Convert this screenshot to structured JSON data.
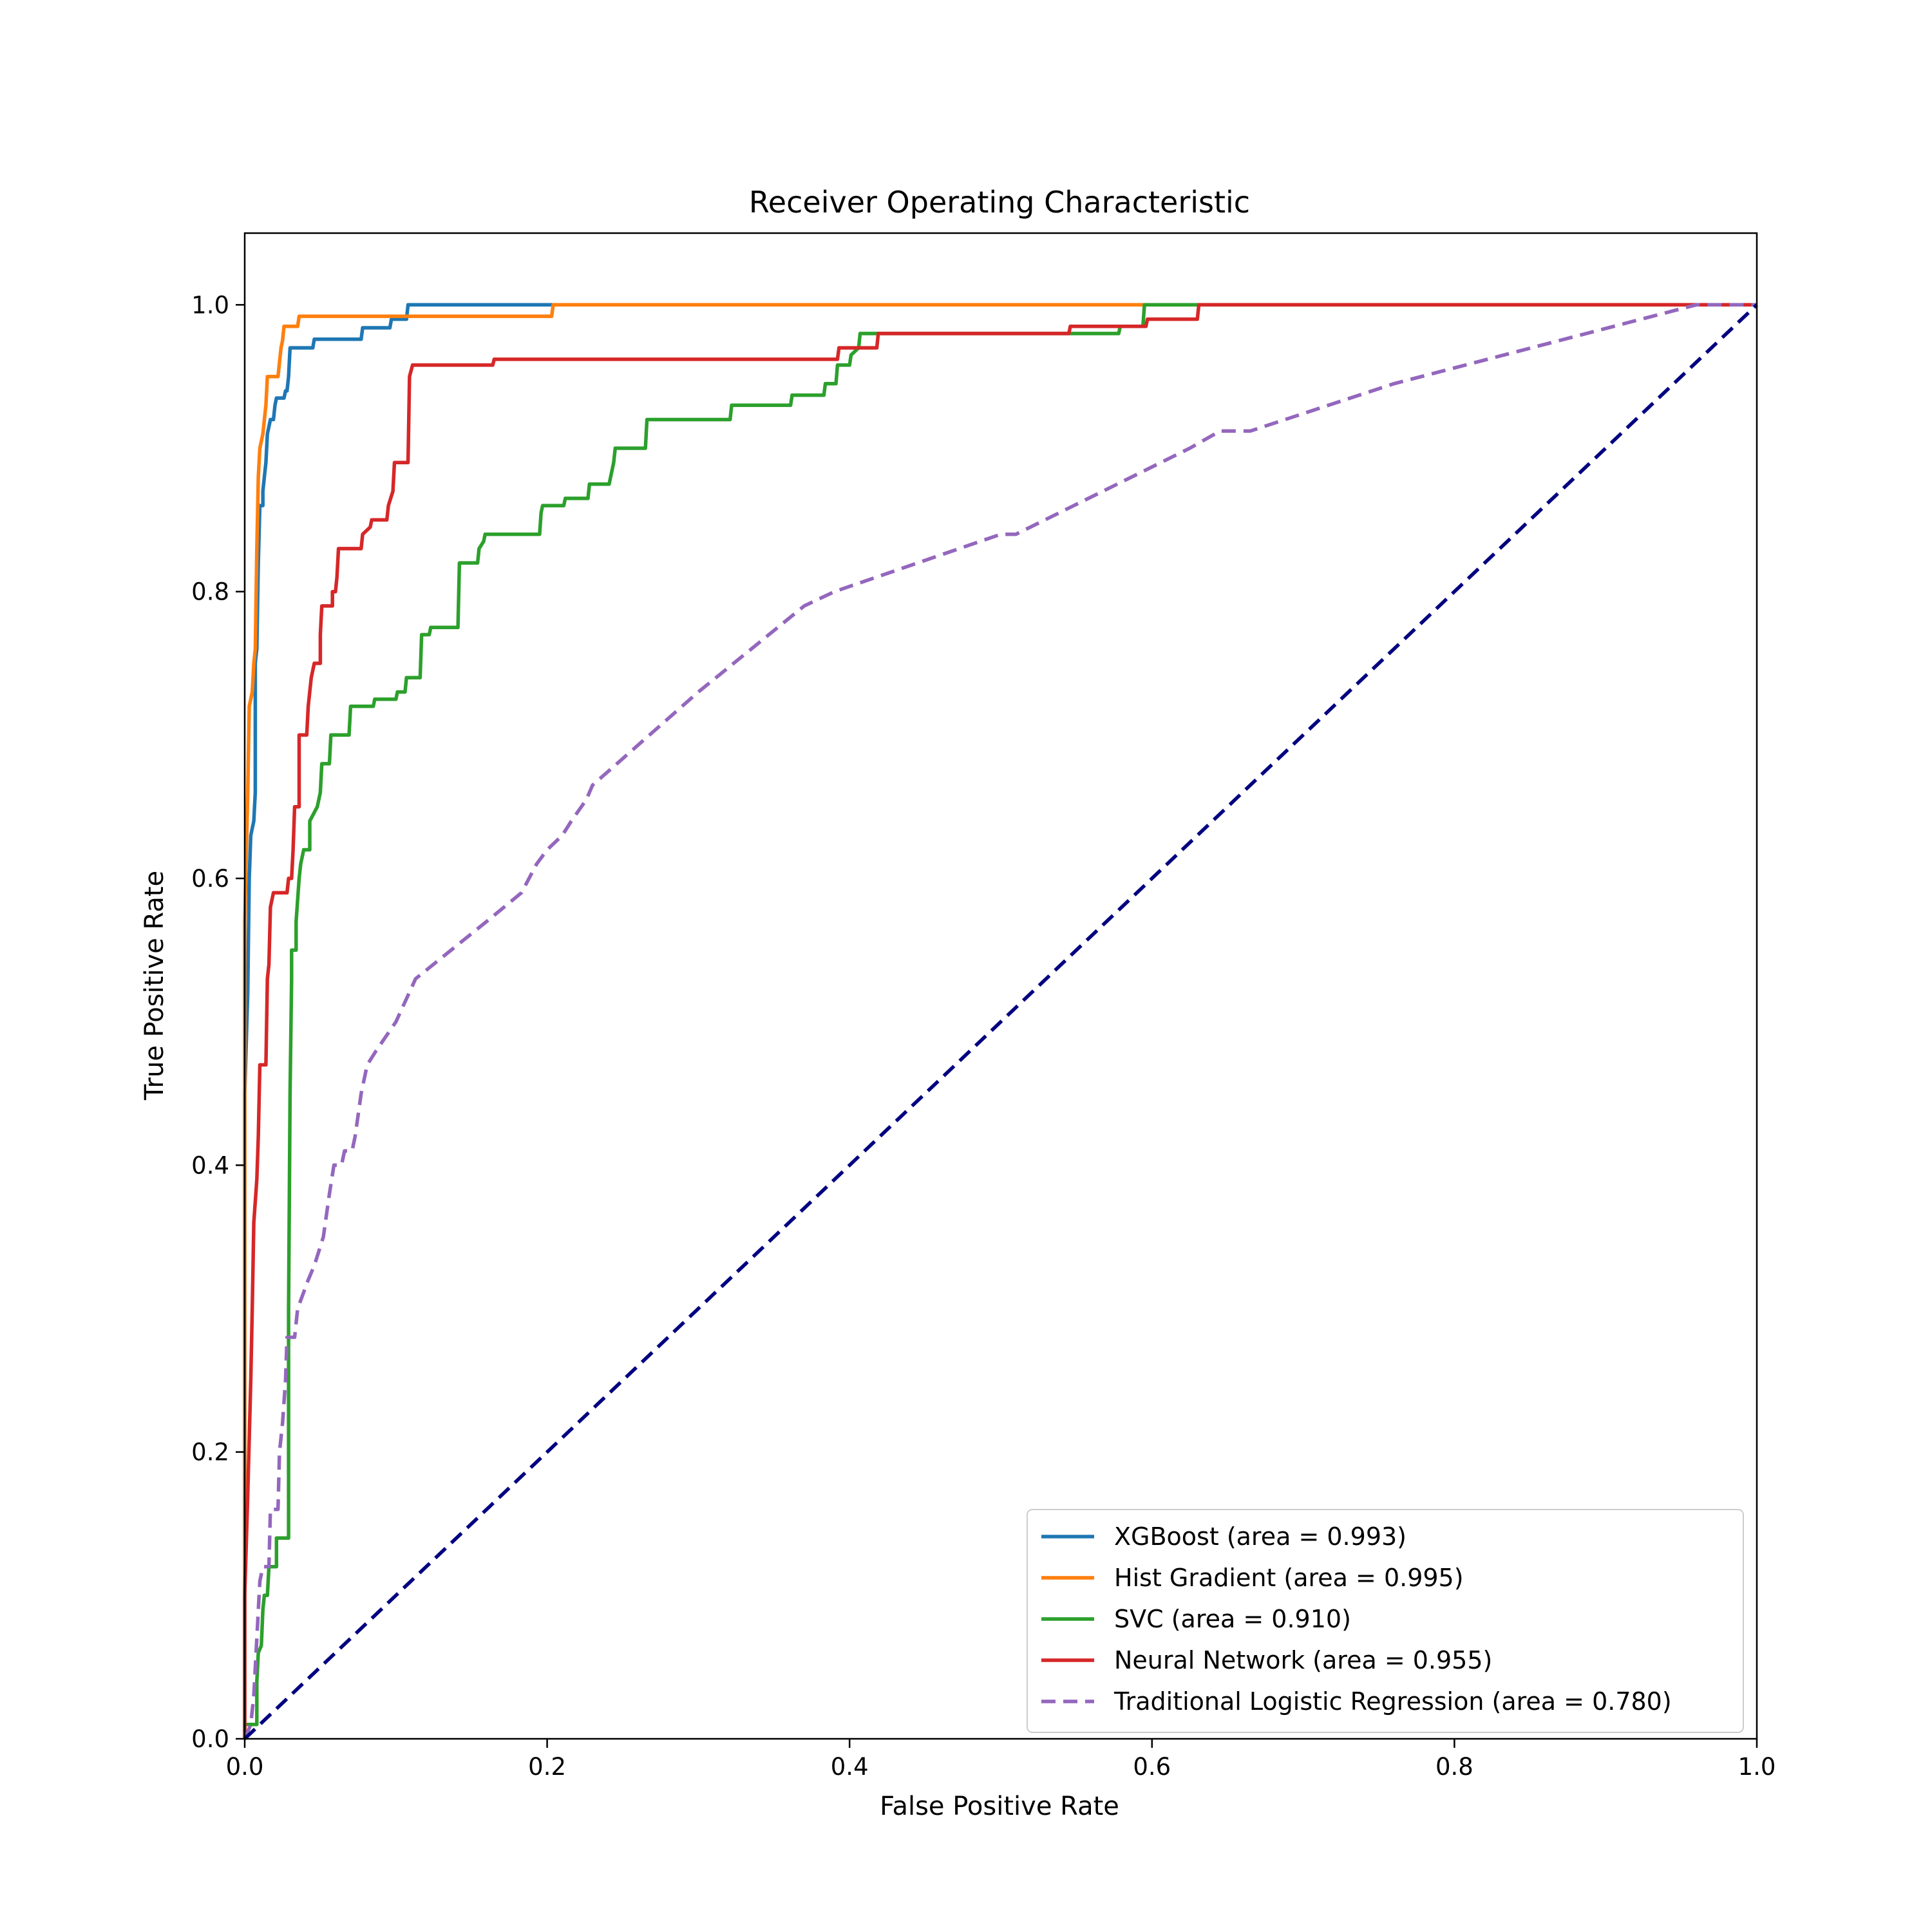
{
  "chart_data": {
    "type": "line",
    "title": "Receiver Operating Characteristic",
    "xlabel": "False Positive Rate",
    "ylabel": "True Positive Rate",
    "xlim": [
      0.0,
      1.0
    ],
    "ylim": [
      0.0,
      1.05
    ],
    "x_ticks": [
      "0.0",
      "0.2",
      "0.4",
      "0.6",
      "0.8",
      "1.0"
    ],
    "y_ticks": [
      "0.0",
      "0.2",
      "0.4",
      "0.6",
      "0.8",
      "1.0"
    ],
    "grid": false,
    "legend_position": "bottom-right",
    "series": [
      {
        "name": "XGBoost (area = 0.993)",
        "color": "#1f77b4",
        "style": "solid",
        "points": [
          [
            0,
            0
          ],
          [
            0,
            0.45
          ],
          [
            0.002,
            0.52
          ],
          [
            0.003,
            0.6
          ],
          [
            0.004,
            0.63
          ],
          [
            0.006,
            0.64
          ],
          [
            0.007,
            0.66
          ],
          [
            0.007,
            0.75
          ],
          [
            0.008,
            0.76
          ],
          [
            0.009,
            0.82
          ],
          [
            0.01,
            0.86
          ],
          [
            0.012,
            0.86
          ],
          [
            0.012,
            0.87
          ],
          [
            0.013,
            0.88
          ],
          [
            0.014,
            0.89
          ],
          [
            0.015,
            0.91
          ],
          [
            0.017,
            0.92
          ],
          [
            0.019,
            0.92
          ],
          [
            0.02,
            0.93
          ],
          [
            0.021,
            0.935
          ],
          [
            0.026,
            0.935
          ],
          [
            0.027,
            0.94
          ],
          [
            0.028,
            0.94
          ],
          [
            0.029,
            0.95
          ],
          [
            0.03,
            0.97
          ],
          [
            0.045,
            0.97
          ],
          [
            0.046,
            0.976
          ],
          [
            0.077,
            0.976
          ],
          [
            0.078,
            0.984
          ],
          [
            0.096,
            0.984
          ],
          [
            0.097,
            0.99
          ],
          [
            0.107,
            0.99
          ],
          [
            0.108,
            1.0
          ],
          [
            1.0,
            1.0
          ]
        ]
      },
      {
        "name": "Hist Gradient (area = 0.995)",
        "color": "#ff7f0e",
        "style": "solid",
        "points": [
          [
            0,
            0
          ],
          [
            0,
            0.57
          ],
          [
            0.002,
            0.66
          ],
          [
            0.003,
            0.72
          ],
          [
            0.005,
            0.73
          ],
          [
            0.006,
            0.75
          ],
          [
            0.007,
            0.76
          ],
          [
            0.008,
            0.83
          ],
          [
            0.009,
            0.88
          ],
          [
            0.01,
            0.9
          ],
          [
            0.012,
            0.91
          ],
          [
            0.013,
            0.92
          ],
          [
            0.014,
            0.93
          ],
          [
            0.015,
            0.95
          ],
          [
            0.022,
            0.95
          ],
          [
            0.023,
            0.96
          ],
          [
            0.024,
            0.97
          ],
          [
            0.025,
            0.975
          ],
          [
            0.026,
            0.985
          ],
          [
            0.035,
            0.985
          ],
          [
            0.036,
            0.992
          ],
          [
            0.203,
            0.992
          ],
          [
            0.204,
            1.0
          ],
          [
            1.0,
            1.0
          ]
        ]
      },
      {
        "name": "SVC (area = 0.910)",
        "color": "#2ca02c",
        "style": "solid",
        "points": [
          [
            0,
            0
          ],
          [
            0,
            0.01
          ],
          [
            0.008,
            0.01
          ],
          [
            0.008,
            0.04
          ],
          [
            0.009,
            0.06
          ],
          [
            0.011,
            0.065
          ],
          [
            0.012,
            0.09
          ],
          [
            0.013,
            0.1
          ],
          [
            0.015,
            0.1
          ],
          [
            0.016,
            0.12
          ],
          [
            0.021,
            0.12
          ],
          [
            0.021,
            0.14
          ],
          [
            0.029,
            0.14
          ],
          [
            0.029,
            0.3
          ],
          [
            0.03,
            0.45
          ],
          [
            0.031,
            0.53
          ],
          [
            0.031,
            0.55
          ],
          [
            0.034,
            0.55
          ],
          [
            0.034,
            0.57
          ],
          [
            0.036,
            0.6
          ],
          [
            0.037,
            0.61
          ],
          [
            0.039,
            0.62
          ],
          [
            0.043,
            0.62
          ],
          [
            0.043,
            0.64
          ],
          [
            0.048,
            0.65
          ],
          [
            0.05,
            0.66
          ],
          [
            0.051,
            0.68
          ],
          [
            0.056,
            0.68
          ],
          [
            0.057,
            0.7
          ],
          [
            0.069,
            0.7
          ],
          [
            0.07,
            0.72
          ],
          [
            0.085,
            0.72
          ],
          [
            0.086,
            0.725
          ],
          [
            0.1,
            0.725
          ],
          [
            0.101,
            0.73
          ],
          [
            0.106,
            0.73
          ],
          [
            0.107,
            0.74
          ],
          [
            0.116,
            0.74
          ],
          [
            0.117,
            0.77
          ],
          [
            0.122,
            0.77
          ],
          [
            0.123,
            0.775
          ],
          [
            0.141,
            0.775
          ],
          [
            0.142,
            0.82
          ],
          [
            0.154,
            0.82
          ],
          [
            0.155,
            0.83
          ],
          [
            0.158,
            0.835
          ],
          [
            0.159,
            0.84
          ],
          [
            0.195,
            0.84
          ],
          [
            0.196,
            0.855
          ],
          [
            0.197,
            0.86
          ],
          [
            0.211,
            0.86
          ],
          [
            0.212,
            0.865
          ],
          [
            0.227,
            0.865
          ],
          [
            0.228,
            0.875
          ],
          [
            0.241,
            0.875
          ],
          [
            0.242,
            0.88
          ],
          [
            0.244,
            0.89
          ],
          [
            0.245,
            0.9
          ],
          [
            0.265,
            0.9
          ],
          [
            0.266,
            0.92
          ],
          [
            0.321,
            0.92
          ],
          [
            0.322,
            0.93
          ],
          [
            0.361,
            0.93
          ],
          [
            0.362,
            0.937
          ],
          [
            0.383,
            0.937
          ],
          [
            0.384,
            0.945
          ],
          [
            0.391,
            0.945
          ],
          [
            0.392,
            0.958
          ],
          [
            0.4,
            0.958
          ],
          [
            0.401,
            0.965
          ],
          [
            0.406,
            0.97
          ],
          [
            0.407,
            0.98
          ],
          [
            0.578,
            0.98
          ],
          [
            0.579,
            0.985
          ],
          [
            0.594,
            0.985
          ],
          [
            0.595,
            1.0
          ],
          [
            1.0,
            1.0
          ]
        ]
      },
      {
        "name": "Neural Network (area = 0.955)",
        "color": "#d62728",
        "style": "solid",
        "points": [
          [
            0,
            0
          ],
          [
            0,
            0.1
          ],
          [
            0.002,
            0.17
          ],
          [
            0.004,
            0.25
          ],
          [
            0.005,
            0.3
          ],
          [
            0.006,
            0.36
          ],
          [
            0.008,
            0.39
          ],
          [
            0.009,
            0.42
          ],
          [
            0.01,
            0.47
          ],
          [
            0.014,
            0.47
          ],
          [
            0.015,
            0.53
          ],
          [
            0.016,
            0.54
          ],
          [
            0.017,
            0.58
          ],
          [
            0.019,
            0.59
          ],
          [
            0.028,
            0.59
          ],
          [
            0.029,
            0.6
          ],
          [
            0.031,
            0.6
          ],
          [
            0.032,
            0.62
          ],
          [
            0.033,
            0.65
          ],
          [
            0.036,
            0.65
          ],
          [
            0.036,
            0.7
          ],
          [
            0.041,
            0.7
          ],
          [
            0.042,
            0.72
          ],
          [
            0.044,
            0.74
          ],
          [
            0.046,
            0.75
          ],
          [
            0.05,
            0.75
          ],
          [
            0.05,
            0.77
          ],
          [
            0.051,
            0.79
          ],
          [
            0.058,
            0.79
          ],
          [
            0.058,
            0.8
          ],
          [
            0.06,
            0.8
          ],
          [
            0.061,
            0.81
          ],
          [
            0.062,
            0.83
          ],
          [
            0.077,
            0.83
          ],
          [
            0.078,
            0.84
          ],
          [
            0.083,
            0.845
          ],
          [
            0.084,
            0.85
          ],
          [
            0.094,
            0.85
          ],
          [
            0.095,
            0.86
          ],
          [
            0.098,
            0.87
          ],
          [
            0.099,
            0.89
          ],
          [
            0.108,
            0.89
          ],
          [
            0.109,
            0.95
          ],
          [
            0.111,
            0.958
          ],
          [
            0.164,
            0.958
          ],
          [
            0.165,
            0.962
          ],
          [
            0.392,
            0.962
          ],
          [
            0.393,
            0.97
          ],
          [
            0.418,
            0.97
          ],
          [
            0.419,
            0.98
          ],
          [
            0.545,
            0.98
          ],
          [
            0.546,
            0.985
          ],
          [
            0.596,
            0.985
          ],
          [
            0.597,
            0.99
          ],
          [
            0.63,
            0.99
          ],
          [
            0.631,
            1.0
          ],
          [
            1.0,
            1.0
          ]
        ]
      },
      {
        "name": "Traditional Logistic Regression (area = 0.780)",
        "color": "#9467bd",
        "style": "dashed",
        "points": [
          [
            0,
            0
          ],
          [
            0.004,
            0.01
          ],
          [
            0.006,
            0.03
          ],
          [
            0.008,
            0.07
          ],
          [
            0.01,
            0.11
          ],
          [
            0.012,
            0.12
          ],
          [
            0.016,
            0.12
          ],
          [
            0.017,
            0.16
          ],
          [
            0.022,
            0.16
          ],
          [
            0.023,
            0.2
          ],
          [
            0.025,
            0.22
          ],
          [
            0.027,
            0.25
          ],
          [
            0.028,
            0.28
          ],
          [
            0.033,
            0.28
          ],
          [
            0.035,
            0.3
          ],
          [
            0.042,
            0.32
          ],
          [
            0.046,
            0.33
          ],
          [
            0.049,
            0.34
          ],
          [
            0.052,
            0.35
          ],
          [
            0.056,
            0.38
          ],
          [
            0.059,
            0.4
          ],
          [
            0.064,
            0.4
          ],
          [
            0.066,
            0.41
          ],
          [
            0.071,
            0.41
          ],
          [
            0.073,
            0.42
          ],
          [
            0.077,
            0.45
          ],
          [
            0.081,
            0.47
          ],
          [
            0.087,
            0.48
          ],
          [
            0.1,
            0.5
          ],
          [
            0.113,
            0.53
          ],
          [
            0.16,
            0.57
          ],
          [
            0.183,
            0.59
          ],
          [
            0.193,
            0.61
          ],
          [
            0.2,
            0.62
          ],
          [
            0.21,
            0.63
          ],
          [
            0.216,
            0.64
          ],
          [
            0.226,
            0.655
          ],
          [
            0.23,
            0.665
          ],
          [
            0.3,
            0.73
          ],
          [
            0.37,
            0.79
          ],
          [
            0.39,
            0.8
          ],
          [
            0.5,
            0.84
          ],
          [
            0.51,
            0.84
          ],
          [
            0.625,
            0.9
          ],
          [
            0.645,
            0.912
          ],
          [
            0.665,
            0.912
          ],
          [
            0.76,
            0.945
          ],
          [
            0.96,
            1.0
          ],
          [
            1.0,
            1.0
          ]
        ]
      },
      {
        "name": "",
        "color": "#000080",
        "style": "dashed",
        "points": [
          [
            0,
            0
          ],
          [
            1,
            1
          ]
        ]
      }
    ]
  }
}
